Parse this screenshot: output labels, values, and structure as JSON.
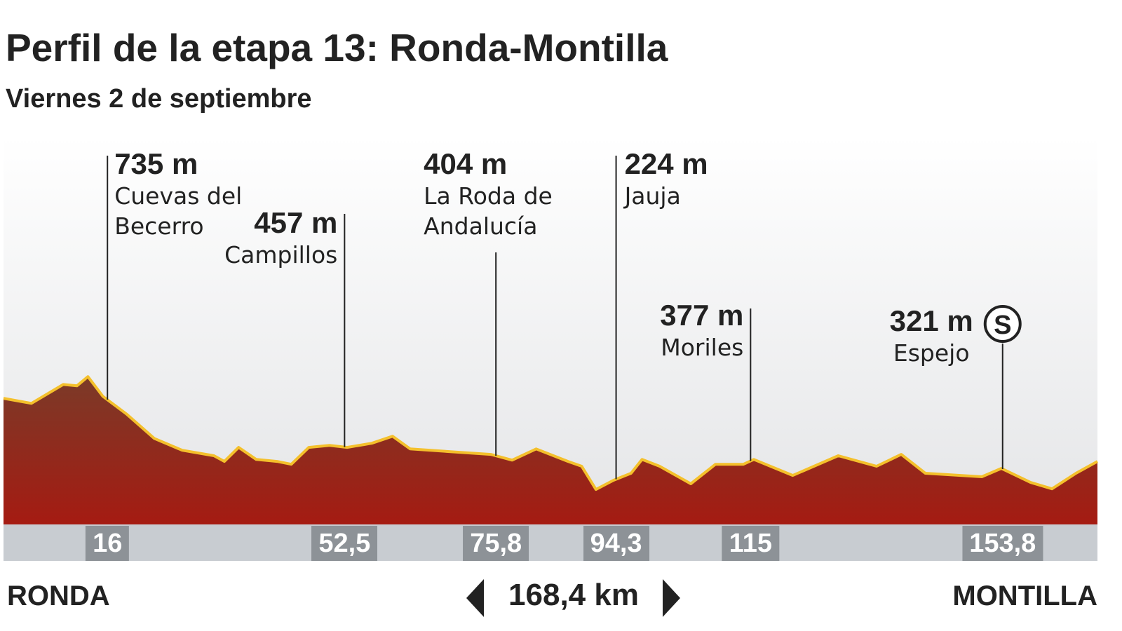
{
  "chart_data": {
    "type": "area",
    "title": "Perfil de la etapa 13: Ronda-Montilla",
    "subtitle": "Viernes 2 de septiembre",
    "xlim": [
      0,
      168.4
    ],
    "ylim": [
      80,
      1840
    ],
    "color": "#f4c02c",
    "profile": {
      "x": [
        0,
        4.3,
        9.2,
        11.3,
        13,
        15.3,
        18.9,
        23.2,
        27.5,
        32.4,
        34,
        36.2,
        38.9,
        42.1,
        44.3,
        47,
        50.2,
        52.9,
        56.7,
        59.9,
        62.6,
        75,
        78.3,
        82,
        86.9,
        89,
        91.2,
        93.9,
        96.6,
        98.3,
        101,
        105.8,
        109.6,
        113.9,
        115.5,
        121.5,
        128.5,
        134.4,
        138.2,
        141.9,
        150.6,
        153.6,
        158.1,
        161.4,
        165.1,
        168.4
      ],
      "values": [
        646,
        623,
        709,
        703,
        745,
        655,
        575,
        463,
        409,
        384,
        358,
        422,
        367,
        358,
        345,
        422,
        431,
        422,
        441,
        473,
        415,
        390,
        364,
        415,
        358,
        336,
        230,
        272,
        304,
        367,
        336,
        256,
        345,
        345,
        367,
        294,
        384,
        336,
        390,
        304,
        288,
        326,
        262,
        233,
        304,
        358
      ]
    },
    "xticks": [
      16,
      {
        "value": 52.5,
        "label": "52,5"
      },
      {
        "value": 75.8,
        "label": "75,8"
      },
      {
        "value": 94.3,
        "label": "94,3"
      },
      115,
      {
        "value": 153.8,
        "label": "153,8"
      }
    ],
    "points": {
      "values": [
        735,
        457,
        404,
        224,
        377,
        321
      ],
      "value_labels": [
        "735 m",
        "457 m",
        "404 m",
        "224 m",
        "377 m",
        "321 m"
      ],
      "names": [
        "Cuevas del Becerro",
        "Campillos",
        "La Roda de Andalucía",
        "Jauja",
        "Moriles",
        "Espejo"
      ],
      "icons": [
        null,
        null,
        null,
        null,
        null,
        "S"
      ]
    },
    "start": "RONDA",
    "end": "MONTILLA",
    "distance": {
      "value": 168.4,
      "label": "168,4 km"
    }
  }
}
